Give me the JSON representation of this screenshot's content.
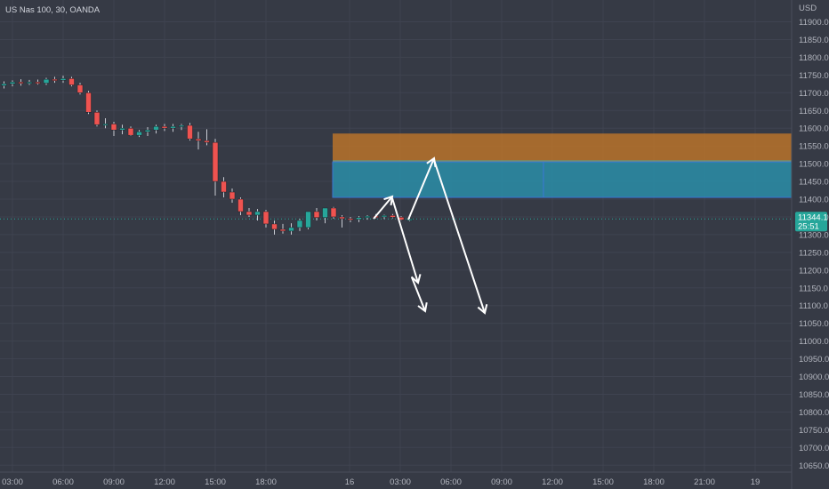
{
  "symbol_title": "US Nas 100, 30, OANDA",
  "currency": "USD",
  "price_tag": {
    "value": "11344.1",
    "countdown": "25:51",
    "color": "#26a69a"
  },
  "colors": {
    "background": "#363a45",
    "grid": "#3f4350",
    "bull": "#26a69a",
    "bear": "#ef5350",
    "axis_text": "#b2b5be",
    "zone_upper": "#b8732a",
    "zone_lower": "#2a8ea8",
    "zone_border": "#3a78d8",
    "arrows": "#ffffff"
  },
  "chart_data": {
    "type": "candlestick",
    "title": "US Nas 100, 30, OANDA",
    "ylabel": "USD",
    "ylim": [
      10625,
      11975
    ],
    "y_ticks": [
      "11900.0",
      "11850.0",
      "11800.0",
      "11750.0",
      "11700.0",
      "11650.0",
      "11600.0",
      "11550.0",
      "11500.0",
      "11450.0",
      "11400.0",
      "11350.0",
      "11300.0",
      "11250.0",
      "11200.0",
      "11150.0",
      "11100.0",
      "11050.0",
      "11000.0",
      "10950.0",
      "10900.0",
      "10850.0",
      "10800.0",
      "10750.0",
      "10700.0",
      "10650.0"
    ],
    "x_ticks": [
      "03:00",
      "06:00",
      "09:00",
      "12:00",
      "15:00",
      "18:00",
      "16",
      "03:00",
      "06:00",
      "09:00",
      "12:00",
      "15:00",
      "18:00",
      "21:00",
      "19"
    ],
    "candles": [
      {
        "t": "02:30",
        "o": 11720,
        "h": 11732,
        "l": 11712,
        "c": 11725
      },
      {
        "t": "03:00",
        "o": 11725,
        "h": 11735,
        "l": 11718,
        "c": 11730
      },
      {
        "t": "03:30",
        "o": 11730,
        "h": 11738,
        "l": 11720,
        "c": 11728
      },
      {
        "t": "04:00",
        "o": 11728,
        "h": 11736,
        "l": 11722,
        "c": 11730
      },
      {
        "t": "04:30",
        "o": 11730,
        "h": 11737,
        "l": 11723,
        "c": 11727
      },
      {
        "t": "05:00",
        "o": 11727,
        "h": 11742,
        "l": 11722,
        "c": 11738
      },
      {
        "t": "05:30",
        "o": 11738,
        "h": 11745,
        "l": 11728,
        "c": 11735
      },
      {
        "t": "06:00",
        "o": 11735,
        "h": 11748,
        "l": 11728,
        "c": 11740
      },
      {
        "t": "06:30",
        "o": 11740,
        "h": 11745,
        "l": 11718,
        "c": 11722
      },
      {
        "t": "07:00",
        "o": 11722,
        "h": 11728,
        "l": 11695,
        "c": 11700
      },
      {
        "t": "07:30",
        "o": 11700,
        "h": 11705,
        "l": 11640,
        "c": 11645
      },
      {
        "t": "08:00",
        "o": 11645,
        "h": 11650,
        "l": 11605,
        "c": 11610
      },
      {
        "t": "08:30",
        "o": 11610,
        "h": 11628,
        "l": 11600,
        "c": 11612
      },
      {
        "t": "09:00",
        "o": 11612,
        "h": 11618,
        "l": 11578,
        "c": 11595
      },
      {
        "t": "09:30",
        "o": 11595,
        "h": 11610,
        "l": 11583,
        "c": 11600
      },
      {
        "t": "10:00",
        "o": 11600,
        "h": 11605,
        "l": 11578,
        "c": 11580
      },
      {
        "t": "10:30",
        "o": 11580,
        "h": 11595,
        "l": 11575,
        "c": 11590
      },
      {
        "t": "11:00",
        "o": 11590,
        "h": 11603,
        "l": 11578,
        "c": 11595
      },
      {
        "t": "11:30",
        "o": 11595,
        "h": 11610,
        "l": 11585,
        "c": 11605
      },
      {
        "t": "12:00",
        "o": 11605,
        "h": 11612,
        "l": 11592,
        "c": 11600
      },
      {
        "t": "12:30",
        "o": 11600,
        "h": 11612,
        "l": 11590,
        "c": 11605
      },
      {
        "t": "13:00",
        "o": 11605,
        "h": 11612,
        "l": 11595,
        "c": 11608
      },
      {
        "t": "13:30",
        "o": 11608,
        "h": 11615,
        "l": 11565,
        "c": 11570
      },
      {
        "t": "14:00",
        "o": 11570,
        "h": 11590,
        "l": 11540,
        "c": 11565
      },
      {
        "t": "14:30",
        "o": 11565,
        "h": 11597,
        "l": 11552,
        "c": 11560
      },
      {
        "t": "15:00",
        "o": 11560,
        "h": 11570,
        "l": 11410,
        "c": 11450
      },
      {
        "t": "15:30",
        "o": 11450,
        "h": 11462,
        "l": 11405,
        "c": 11420
      },
      {
        "t": "16:00",
        "o": 11420,
        "h": 11430,
        "l": 11390,
        "c": 11400
      },
      {
        "t": "16:30",
        "o": 11400,
        "h": 11405,
        "l": 11355,
        "c": 11365
      },
      {
        "t": "17:00",
        "o": 11365,
        "h": 11375,
        "l": 11350,
        "c": 11355
      },
      {
        "t": "17:30",
        "o": 11355,
        "h": 11372,
        "l": 11340,
        "c": 11365
      },
      {
        "t": "18:00",
        "o": 11365,
        "h": 11370,
        "l": 11320,
        "c": 11330
      },
      {
        "t": "18:30",
        "o": 11330,
        "h": 11340,
        "l": 11300,
        "c": 11315
      },
      {
        "t": "19:00",
        "o": 11315,
        "h": 11330,
        "l": 11303,
        "c": 11310
      },
      {
        "t": "19:30",
        "o": 11310,
        "h": 11332,
        "l": 11300,
        "c": 11320
      },
      {
        "t": "20:00",
        "o": 11320,
        "h": 11345,
        "l": 11310,
        "c": 11340
      },
      {
        "t": "20:30",
        "o": 11320,
        "h": 11365,
        "l": 11315,
        "c": 11365
      },
      {
        "t": "21:00",
        "o": 11365,
        "h": 11375,
        "l": 11340,
        "c": 11348
      },
      {
        "t": "21:30",
        "o": 11348,
        "h": 11372,
        "l": 11332,
        "c": 11375
      },
      {
        "t": "22:00",
        "o": 11375,
        "h": 11378,
        "l": 11345,
        "c": 11350
      },
      {
        "t": "22:30",
        "o": 11350,
        "h": 11355,
        "l": 11320,
        "c": 11345
      },
      {
        "t": "23:00",
        "o": 11345,
        "h": 11350,
        "l": 11335,
        "c": 11343
      },
      {
        "t": "23:30",
        "o": 11343,
        "h": 11352,
        "l": 11335,
        "c": 11348
      },
      {
        "t": "00:00",
        "o": 11348,
        "h": 11355,
        "l": 11342,
        "c": 11352
      },
      {
        "t": "00:30",
        "o": 11352,
        "h": 11358,
        "l": 11346,
        "c": 11350
      },
      {
        "t": "01:00",
        "o": 11350,
        "h": 11356,
        "l": 11344,
        "c": 11354
      },
      {
        "t": "01:30",
        "o": 11354,
        "h": 11358,
        "l": 11346,
        "c": 11349
      },
      {
        "t": "02:00",
        "o": 11349,
        "h": 11352,
        "l": 11340,
        "c": 11342
      },
      {
        "t": "02:30",
        "o": 11342,
        "h": 11350,
        "l": 11338,
        "c": 11344
      }
    ],
    "zones": [
      {
        "name": "upper-zone",
        "top": 11585,
        "bottom": 11510
      },
      {
        "name": "lower-zone",
        "top": 11505,
        "bottom": 11405
      }
    ],
    "arrows": [
      {
        "path": [
          [
            "02:30",
            11340
          ],
          [
            "03:30",
            11405
          ]
        ]
      },
      {
        "path": [
          [
            "03:30",
            11405
          ],
          [
            "05:00",
            11150
          ]
        ]
      },
      {
        "path": [
          [
            "03:00",
            11350
          ],
          [
            "04:30",
            11520
          ]
        ]
      },
      {
        "path": [
          [
            "03:30",
            11190
          ],
          [
            "04:30",
            11075
          ]
        ]
      },
      {
        "path": [
          [
            "04:30",
            11520
          ],
          [
            "07:30",
            11075
          ]
        ]
      }
    ],
    "current_price": 11344.1,
    "grid": true
  }
}
